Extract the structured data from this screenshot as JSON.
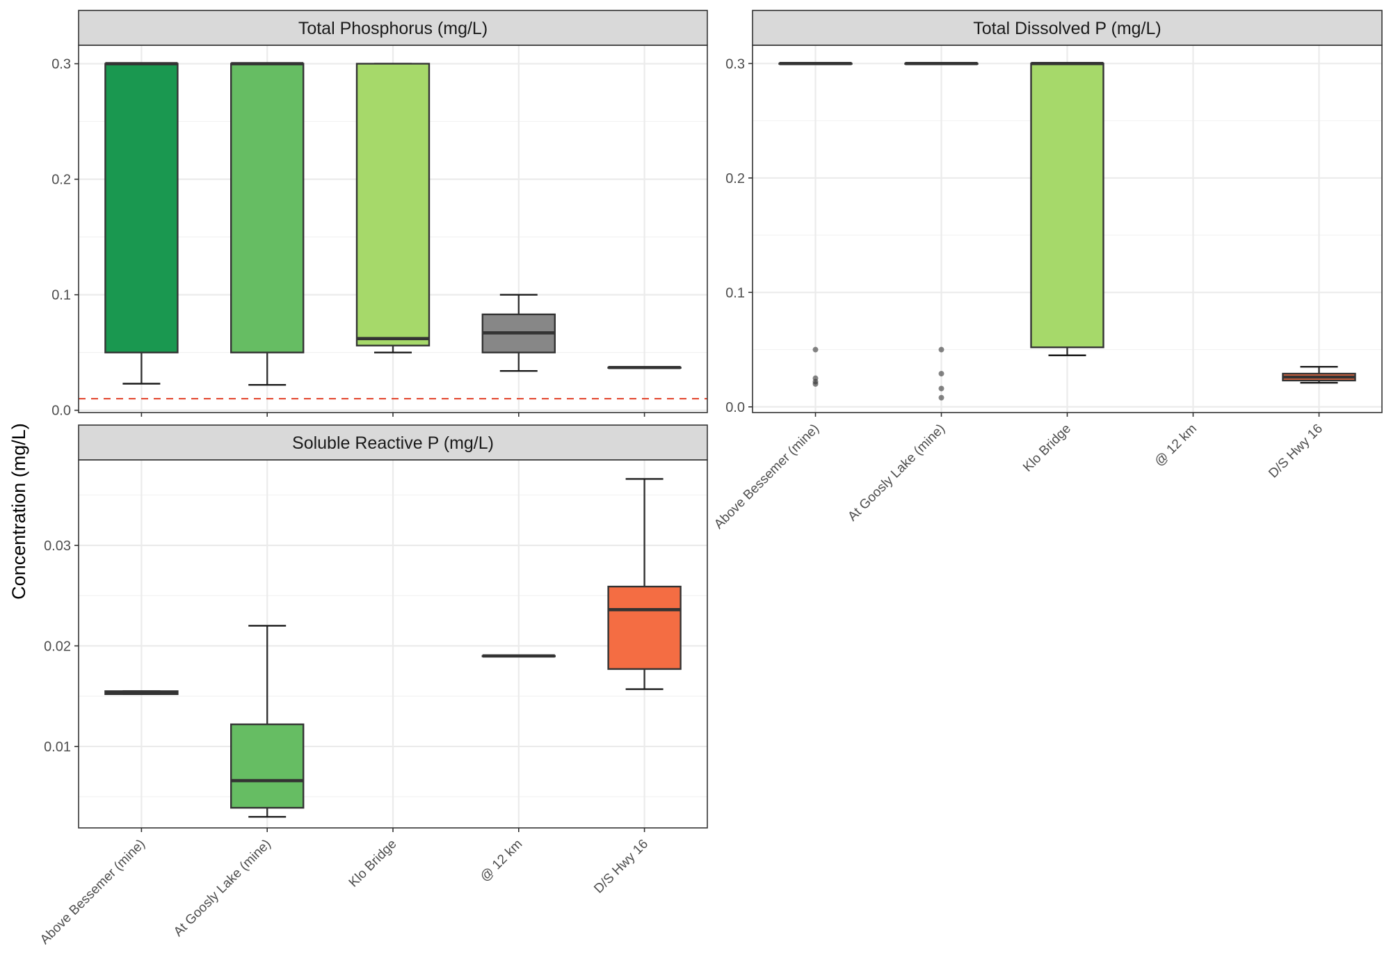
{
  "y_axis_label": "Concentration (mg/L)",
  "categories": [
    "Above Bessemer (mine)",
    "At Goosly Lake (mine)",
    "Klo Bridge",
    "@ 12 km",
    "D/S Hwy 16"
  ],
  "colors": {
    "Above Bessemer (mine)": "#1a9850",
    "At Goosly Lake (mine)": "#66bd63",
    "Klo Bridge": "#a6d96a",
    "@ 12 km": "#878787",
    "D/S Hwy 16": "#f46d43",
    "reference_line": "#e34a33"
  },
  "chart_data": [
    {
      "type": "box",
      "title": "Total Phosphorus (mg/L)",
      "ylim": [
        -0.002,
        0.316
      ],
      "yticks": [
        0.0,
        0.1,
        0.2,
        0.3
      ],
      "ytick_labels": [
        "0.0",
        "0.1",
        "0.2",
        "0.3"
      ],
      "reference_line": 0.01,
      "boxes": [
        {
          "category": "Above Bessemer (mine)",
          "min": 0.023,
          "q1": 0.05,
          "median": 0.3,
          "q3": 0.3,
          "max": 0.3
        },
        {
          "category": "At Goosly Lake (mine)",
          "min": 0.022,
          "q1": 0.05,
          "median": 0.3,
          "q3": 0.3,
          "max": 0.3
        },
        {
          "category": "Klo Bridge",
          "min": 0.05,
          "q1": 0.056,
          "median": 0.062,
          "q3": 0.3,
          "max": 0.3
        },
        {
          "category": "@ 12 km",
          "min": 0.034,
          "q1": 0.05,
          "median": 0.067,
          "q3": 0.083,
          "max": 0.1
        },
        {
          "category": "D/S Hwy 16",
          "min": 0.037,
          "q1": 0.037,
          "median": 0.037,
          "q3": 0.037,
          "max": 0.037
        }
      ]
    },
    {
      "type": "box",
      "title": "Total Dissolved P (mg/L)",
      "ylim": [
        -0.005,
        0.316
      ],
      "yticks": [
        0.0,
        0.1,
        0.2,
        0.3
      ],
      "ytick_labels": [
        "0.0",
        "0.1",
        "0.2",
        "0.3"
      ],
      "boxes": [
        {
          "category": "Above Bessemer (mine)",
          "min": 0.3,
          "q1": 0.3,
          "median": 0.3,
          "q3": 0.3,
          "max": 0.3,
          "outliers": [
            0.05,
            0.025,
            0.022,
            0.02
          ]
        },
        {
          "category": "At Goosly Lake (mine)",
          "min": 0.3,
          "q1": 0.3,
          "median": 0.3,
          "q3": 0.3,
          "max": 0.3,
          "outliers": [
            0.05,
            0.029,
            0.016,
            0.008
          ]
        },
        {
          "category": "Klo Bridge",
          "min": 0.045,
          "q1": 0.052,
          "median": 0.3,
          "q3": 0.3,
          "max": 0.3
        },
        {
          "category": "D/S Hwy 16",
          "min": 0.021,
          "q1": 0.023,
          "median": 0.026,
          "q3": 0.029,
          "max": 0.035
        }
      ]
    },
    {
      "type": "box",
      "title": "Soluble Reactive P (mg/L)",
      "ylim": [
        0.0019,
        0.0385
      ],
      "yticks": [
        0.01,
        0.02,
        0.03
      ],
      "ytick_labels": [
        "0.01",
        "0.02",
        "0.03"
      ],
      "boxes": [
        {
          "category": "Above Bessemer (mine)",
          "min": 0.0152,
          "q1": 0.0152,
          "median": 0.0153,
          "q3": 0.0155,
          "max": 0.0155
        },
        {
          "category": "At Goosly Lake (mine)",
          "min": 0.003,
          "q1": 0.0039,
          "median": 0.0066,
          "q3": 0.0122,
          "max": 0.022
        },
        {
          "category": "@ 12 km",
          "min": 0.019,
          "q1": 0.019,
          "median": 0.019,
          "q3": 0.019,
          "max": 0.019
        },
        {
          "category": "D/S Hwy 16",
          "min": 0.0157,
          "q1": 0.0177,
          "median": 0.0236,
          "q3": 0.0259,
          "max": 0.0366
        }
      ]
    }
  ]
}
